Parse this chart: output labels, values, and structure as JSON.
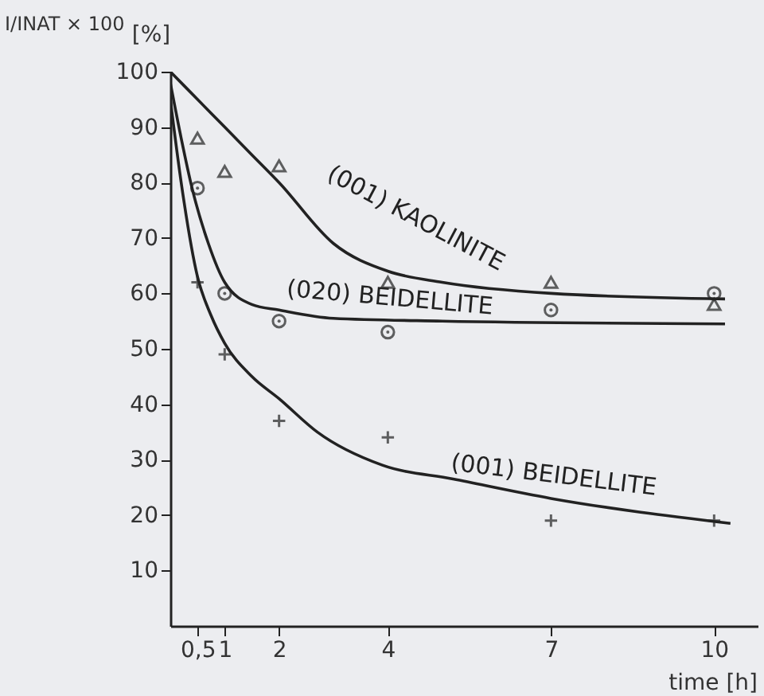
{
  "chart_data": {
    "type": "scatter",
    "ylabel": "I/INAT × 100",
    "xlabel": "time [h]",
    "xlim": [
      0,
      10.8
    ],
    "ylim": [
      0,
      100
    ],
    "xticks": [
      {
        "value": 0.5,
        "label": "0,5"
      },
      1,
      2,
      4,
      7,
      10
    ],
    "yticks": [
      10,
      20,
      30,
      40,
      50,
      60,
      70,
      80,
      90,
      100
    ],
    "grid": false,
    "annotations": [
      "[%]",
      "(001) KAOLINITE",
      "(020) BEIDELLITE",
      "(001) BEIDELLITE"
    ],
    "series": [
      {
        "type": "line",
        "color": "#222222",
        "marker": "none",
        "x": [
          0,
          0.5,
          1,
          1.5,
          2,
          3,
          4,
          5,
          7,
          10.2
        ],
        "values": [
          100,
          95,
          90,
          85,
          80,
          69,
          64,
          62,
          60,
          59
        ]
      },
      {
        "type": "line",
        "color": "#222222",
        "marker": "none",
        "x": [
          0,
          0.2,
          0.4,
          0.7,
          1,
          1.5,
          2,
          3,
          5,
          10.2
        ],
        "values": [
          98,
          88,
          79,
          69,
          62,
          58,
          57,
          55.5,
          55,
          54.5
        ]
      },
      {
        "type": "line",
        "color": "#222222",
        "marker": "none",
        "x": [
          0,
          0.2,
          0.5,
          0.75,
          1,
          1.5,
          2,
          2.7,
          3.9,
          5.2,
          7,
          10.3
        ],
        "values": [
          95,
          80,
          63,
          56,
          51,
          45,
          41,
          35,
          29,
          26.5,
          23,
          18.5
        ]
      },
      {
        "color": "#222222",
        "marker": "triangle",
        "x": [
          0.5,
          1,
          2,
          4,
          7,
          10
        ],
        "values": [
          88,
          82,
          83,
          62,
          62,
          58
        ]
      },
      {
        "color": "#222222",
        "marker": "circle",
        "x": [
          0.5,
          1,
          2,
          4,
          7,
          10
        ],
        "values": [
          79,
          60,
          55,
          53,
          57,
          60
        ]
      },
      {
        "color": "#222222",
        "marker": "cross",
        "x": [
          0.5,
          1,
          2,
          4,
          7,
          10
        ],
        "values": [
          62,
          49,
          37,
          34,
          19,
          19
        ]
      }
    ]
  }
}
